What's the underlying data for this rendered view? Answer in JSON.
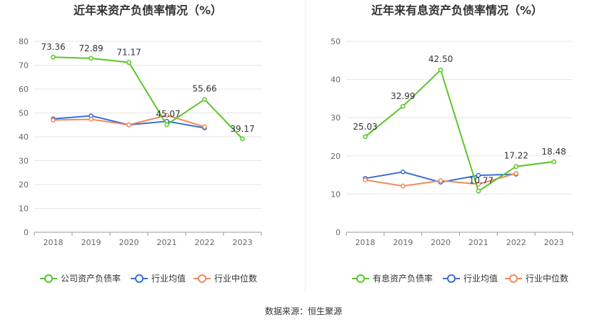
{
  "colors": {
    "company": "#5bc628",
    "industry_avg": "#3a6fd1",
    "industry_median": "#ef8a5f",
    "axis": "#999999",
    "grid": "#e6e6e6",
    "text": "#666666",
    "title": "#333333"
  },
  "source_label": "数据来源：恒生聚源",
  "chart_data": [
    {
      "type": "line",
      "title": "近年来资产负债率情况（%）",
      "x": [
        "2018",
        "2019",
        "2020",
        "2021",
        "2022",
        "2023"
      ],
      "ylim": [
        0,
        80
      ],
      "yticks": [
        0,
        10,
        20,
        30,
        40,
        50,
        60,
        70,
        80
      ],
      "grid": true,
      "legend_position": "bottom",
      "series": [
        {
          "name": "公司资产负债率",
          "color": "#5bc628",
          "values": [
            73.36,
            72.89,
            71.17,
            45.07,
            55.66,
            39.17
          ],
          "labels": [
            "73.36",
            "72.89",
            "71.17",
            "45.07",
            "55.66",
            "39.17"
          ]
        },
        {
          "name": "行业均值",
          "color": "#3a6fd1",
          "values": [
            47.5,
            48.8,
            45.0,
            46.5,
            43.7,
            null
          ],
          "labels": null
        },
        {
          "name": "行业中位数",
          "color": "#ef8a5f",
          "values": [
            47.0,
            47.3,
            45.0,
            49.0,
            44.2,
            null
          ],
          "labels": null
        }
      ]
    },
    {
      "type": "line",
      "title": "近年来有息资产负债率情况（%）",
      "x": [
        "2018",
        "2019",
        "2020",
        "2021",
        "2022",
        "2023"
      ],
      "ylim": [
        0,
        50
      ],
      "yticks": [
        0,
        10,
        20,
        30,
        40,
        50
      ],
      "grid": true,
      "legend_position": "bottom",
      "series": [
        {
          "name": "有息资产负债率",
          "color": "#5bc628",
          "values": [
            25.03,
            32.99,
            42.5,
            10.77,
            17.22,
            18.48
          ],
          "labels": [
            "25.03",
            "32.99",
            "42.50",
            "10.77",
            "17.22",
            "18.48"
          ]
        },
        {
          "name": "行业均值",
          "color": "#3a6fd1",
          "values": [
            14.1,
            15.8,
            13.1,
            14.9,
            15.2,
            null
          ],
          "labels": null
        },
        {
          "name": "行业中位数",
          "color": "#ef8a5f",
          "values": [
            13.7,
            12.1,
            13.5,
            12.6,
            15.4,
            null
          ],
          "labels": null
        }
      ]
    }
  ]
}
